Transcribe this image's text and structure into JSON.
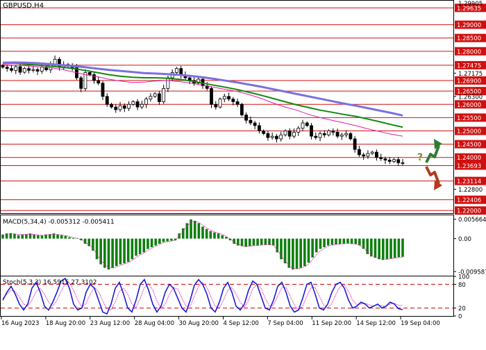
{
  "chart_data": {
    "symbol_label": "GBPUSD,H4",
    "type": "candlestick",
    "price_axis": {
      "ticks": [
        {
          "value": 1.29635,
          "label": "1.29635",
          "red": true
        },
        {
          "value": 1.29,
          "label": "1.29000",
          "red": true
        },
        {
          "value": 1.285,
          "label": "1.28500",
          "red": true
        },
        {
          "value": 1.28,
          "label": "1.28000",
          "red": true
        },
        {
          "value": 1.27475,
          "label": "1.27475",
          "red": true
        },
        {
          "value": 1.27175,
          "label": "1.27175",
          "red": false
        },
        {
          "value": 1.269,
          "label": "1.26900",
          "red": true
        },
        {
          "value": 1.265,
          "label": "1.26500",
          "red": true
        },
        {
          "value": 1.263,
          "label": "1.26300",
          "red": false
        },
        {
          "value": 1.26,
          "label": "1.26000",
          "red": true
        },
        {
          "value": 1.255,
          "label": "1.25500",
          "red": true
        },
        {
          "value": 1.25,
          "label": "1.25000",
          "red": true
        },
        {
          "value": 1.245,
          "label": "1.24500",
          "red": true
        },
        {
          "value": 1.24,
          "label": "1.24000",
          "red": true
        },
        {
          "value": 1.23693,
          "label": "1.23693",
          "red": true
        },
        {
          "value": 1.23114,
          "label": "1.23114",
          "red": true
        },
        {
          "value": 1.228,
          "label": "1.22800",
          "red": false
        },
        {
          "value": 1.22406,
          "label": "1.22406",
          "red": true
        },
        {
          "value": 1.22,
          "label": "1.22000",
          "red": true
        }
      ],
      "top_label": "1.29905"
    },
    "x_axis_labels": [
      "16 Aug 2023",
      "18 Aug 20:00",
      "23 Aug 12:00",
      "28 Aug 04:00",
      "30 Aug 20:00",
      "4 Sep 12:00",
      "7 Sep 04:00",
      "11 Sep 20:00",
      "14 Sep 12:00",
      "19 Sep 04:00"
    ],
    "closes": [
      1.274,
      1.2735,
      1.2728,
      1.2742,
      1.2721,
      1.2735,
      1.2728,
      1.2731,
      1.2725,
      1.274,
      1.273,
      1.2752,
      1.277,
      1.2741,
      1.275,
      1.2745,
      1.2738,
      1.27,
      1.266,
      1.272,
      1.2712,
      1.269,
      1.268,
      1.263,
      1.26,
      1.259,
      1.258,
      1.2595,
      1.2585,
      1.26,
      1.261,
      1.259,
      1.26,
      1.262,
      1.263,
      1.264,
      1.261,
      1.266,
      1.27,
      1.272,
      1.2735,
      1.271,
      1.27,
      1.269,
      1.268,
      1.2695,
      1.267,
      1.266,
      1.26,
      1.259,
      1.262,
      1.263,
      1.262,
      1.261,
      1.26,
      1.256,
      1.254,
      1.253,
      1.252,
      1.25,
      1.249,
      1.2475,
      1.248,
      1.247,
      1.2485,
      1.25,
      1.248,
      1.2495,
      1.251,
      1.253,
      1.252,
      1.248,
      1.2475,
      1.249,
      1.2485,
      1.25,
      1.2495,
      1.248,
      1.2485,
      1.249,
      1.247,
      1.243,
      1.241,
      1.2405,
      1.2415,
      1.242,
      1.24,
      1.2395,
      1.239,
      1.2385,
      1.2392,
      1.238,
      1.2378
    ],
    "moving_averages": [
      {
        "color": "#e41aa8",
        "values": [
          1.275,
          1.2748,
          1.2745,
          1.2742,
          1.2738,
          1.2732,
          1.2722,
          1.2712,
          1.2705,
          1.2695,
          1.2688,
          1.2682,
          1.2684,
          1.2688,
          1.269,
          1.2686,
          1.268,
          1.2672,
          1.2664,
          1.2656,
          1.2648,
          1.2636,
          1.2622,
          1.2605,
          1.259,
          1.2578,
          1.2562,
          1.255,
          1.254,
          1.253,
          1.252,
          1.2508,
          1.2498,
          1.2488,
          1.248
        ]
      },
      {
        "color": "#118811",
        "values": [
          1.2755,
          1.2755,
          1.2752,
          1.2748,
          1.2744,
          1.274,
          1.2735,
          1.2728,
          1.272,
          1.2712,
          1.2706,
          1.2702,
          1.27,
          1.27,
          1.2698,
          1.2694,
          1.2688,
          1.268,
          1.2672,
          1.2664,
          1.2655,
          1.2645,
          1.2634,
          1.2622,
          1.261,
          1.2598,
          1.2588,
          1.2578,
          1.257,
          1.2562,
          1.2555,
          1.2545,
          1.2535,
          1.2524,
          1.2514
        ]
      },
      {
        "color": "#7b6fe0",
        "values": [
          1.2757,
          1.2758,
          1.2757,
          1.2755,
          1.2752,
          1.2748,
          1.2744,
          1.274,
          1.2735,
          1.273,
          1.2726,
          1.2722,
          1.2718,
          1.2716,
          1.2714,
          1.2711,
          1.2707,
          1.2702,
          1.2696,
          1.2689,
          1.2682,
          1.2674,
          1.2666,
          1.2657,
          1.2648,
          1.2639,
          1.263,
          1.2621,
          1.2612,
          1.2603,
          1.2595,
          1.2586,
          1.2577,
          1.2568,
          1.2558
        ]
      }
    ],
    "forecast_arrows": {
      "question_mark": "?",
      "up_color": "#2e7d32",
      "down_color": "#b33a1a"
    },
    "macd": {
      "label": "MACD(5,34,4) -0.005312 -0.005411",
      "axis_ticks": [
        {
          "value": 0.005664,
          "label": "0.005664"
        },
        {
          "value": 0.0,
          "label": "0.00"
        },
        {
          "value": -0.009587,
          "label": "-0.009587"
        }
      ],
      "histogram": [
        0.0012,
        0.0015,
        0.0016,
        0.0014,
        0.001,
        0.0012,
        0.0013,
        0.0015,
        0.0012,
        0.001,
        0.0009,
        0.0012,
        0.0013,
        0.0015,
        0.0012,
        0.001,
        0.0008,
        0.0004,
        0.0002,
        0.0001,
        -0.0005,
        -0.0015,
        -0.0022,
        -0.0035,
        -0.006,
        -0.0075,
        -0.0085,
        -0.009,
        -0.0085,
        -0.008,
        -0.0075,
        -0.0072,
        -0.0068,
        -0.006,
        -0.005,
        -0.0045,
        -0.004,
        -0.003,
        -0.0025,
        -0.002,
        -0.0015,
        -0.001,
        -0.0008,
        -0.0006,
        -0.0005,
        0.0015,
        0.003,
        0.0045,
        0.0056,
        0.0052,
        0.0045,
        0.0035,
        0.0028,
        0.0022,
        0.0018,
        0.0015,
        0.001,
        0.0005,
        -0.0005,
        -0.0015,
        -0.002,
        -0.0022,
        -0.0024,
        -0.0022,
        -0.002,
        -0.002,
        -0.0018,
        -0.0018,
        -0.0018,
        -0.002,
        -0.004,
        -0.006,
        -0.0072,
        -0.0085,
        -0.009,
        -0.0088,
        -0.0085,
        -0.008,
        -0.007,
        -0.0055,
        -0.004,
        -0.003,
        -0.0025,
        -0.002,
        -0.0018,
        -0.0017,
        -0.0016,
        -0.0015,
        -0.0014,
        -0.0015,
        -0.0016,
        -0.002,
        -0.003,
        -0.0045,
        -0.0052,
        -0.0056,
        -0.006,
        -0.0062,
        -0.006,
        -0.0058,
        -0.0056,
        -0.0054,
        -0.0053
      ],
      "signal": [
        0.001,
        0.0012,
        0.0014,
        0.0014,
        0.0012,
        0.0012,
        0.0012,
        0.0013,
        0.0012,
        0.0011,
        0.001,
        0.0011,
        0.0012,
        0.0013,
        0.0012,
        0.0011,
        0.0009,
        0.0006,
        0.0003,
        0.0001,
        -0.0003,
        -0.001,
        -0.0018,
        -0.0028,
        -0.0045,
        -0.0062,
        -0.0075,
        -0.0084,
        -0.0086,
        -0.0083,
        -0.0078,
        -0.0074,
        -0.007,
        -0.0063,
        -0.0055,
        -0.0048,
        -0.0042,
        -0.0034,
        -0.0028,
        -0.0022,
        -0.0017,
        -0.0012,
        -0.0009,
        -0.0007,
        -0.0005,
        0.0008,
        0.0022,
        0.0036,
        0.0048,
        0.0051,
        0.0047,
        0.0039,
        0.0031,
        0.0025,
        0.002,
        0.0016,
        0.0012,
        0.0007,
        -0.0001,
        -0.001,
        -0.0017,
        -0.002,
        -0.0023,
        -0.0022,
        -0.0021,
        -0.002,
        -0.0019,
        -0.0018,
        -0.0018,
        -0.0019,
        -0.0032,
        -0.005,
        -0.0065,
        -0.0078,
        -0.0087,
        -0.0088,
        -0.0086,
        -0.0082,
        -0.0074,
        -0.0061,
        -0.0047,
        -0.0036,
        -0.0028,
        -0.0022,
        -0.0019,
        -0.0017,
        -0.0016,
        -0.0015,
        -0.0014,
        -0.0015,
        -0.0016,
        -0.0019,
        -0.0026,
        -0.0038,
        -0.0048,
        -0.0054,
        -0.0058,
        -0.0061,
        -0.006,
        -0.0059,
        -0.0057,
        -0.0055,
        -0.0054
      ],
      "bar_color": "#0e7f0e",
      "signal_color": "#e41aa8"
    },
    "stoch": {
      "label": "Stoch(5,3,3) 16.5915 27.3102",
      "axis_ticks": [
        {
          "value": 100,
          "label": "100"
        },
        {
          "value": 80,
          "label": "80"
        },
        {
          "value": 20,
          "label": "20"
        },
        {
          "value": 0,
          "label": "0"
        }
      ],
      "levels": [
        80,
        20
      ],
      "k": [
        40,
        60,
        75,
        55,
        30,
        15,
        30,
        70,
        85,
        60,
        25,
        15,
        35,
        60,
        88,
        95,
        70,
        30,
        15,
        20,
        60,
        80,
        70,
        40,
        10,
        5,
        30,
        70,
        85,
        55,
        20,
        10,
        40,
        80,
        92,
        65,
        30,
        10,
        25,
        60,
        80,
        70,
        45,
        20,
        10,
        40,
        78,
        92,
        80,
        55,
        20,
        10,
        35,
        70,
        85,
        60,
        25,
        15,
        30,
        65,
        88,
        80,
        50,
        20,
        15,
        40,
        75,
        85,
        60,
        25,
        10,
        15,
        45,
        80,
        85,
        55,
        20,
        15,
        30,
        60,
        80,
        85,
        70,
        40,
        20,
        25,
        35,
        30,
        20,
        25,
        30,
        20,
        25,
        35,
        30,
        18,
        16
      ],
      "d": [
        45,
        55,
        65,
        62,
        48,
        30,
        25,
        40,
        62,
        70,
        55,
        35,
        25,
        40,
        62,
        82,
        85,
        65,
        40,
        22,
        32,
        55,
        72,
        62,
        38,
        18,
        15,
        35,
        62,
        70,
        55,
        30,
        22,
        45,
        72,
        82,
        65,
        38,
        20,
        30,
        55,
        72,
        68,
        45,
        25,
        25,
        50,
        75,
        85,
        72,
        48,
        25,
        20,
        40,
        65,
        72,
        55,
        35,
        22,
        40,
        68,
        80,
        70,
        45,
        25,
        28,
        50,
        72,
        72,
        50,
        28,
        15,
        25,
        50,
        72,
        72,
        50,
        28,
        20,
        32,
        55,
        75,
        78,
        62,
        40,
        28,
        30,
        32,
        28,
        25,
        28,
        26,
        25,
        30,
        32,
        27,
        27
      ],
      "k_color": "#1a1ad6",
      "d_color": "#e41aa8",
      "level_color": "#cc0000"
    }
  }
}
